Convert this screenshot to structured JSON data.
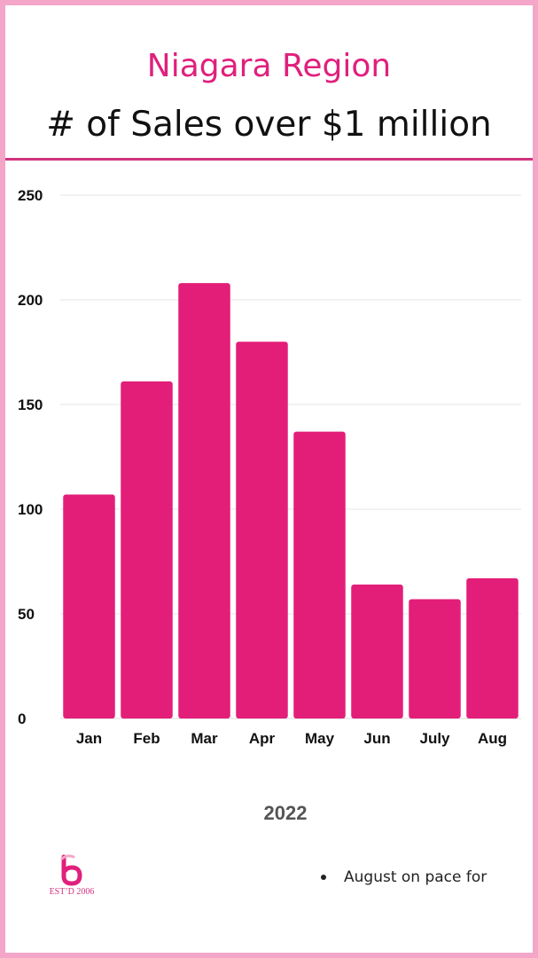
{
  "header": {
    "title_line_1": "Niagara Region",
    "title_line_2": "# of Sales over $1 million"
  },
  "chart_data": {
    "type": "bar",
    "title": "Niagara Region # of Sales over $1 million",
    "xlabel": "2022",
    "ylabel": "",
    "categories": [
      "Jan",
      "Feb",
      "Mar",
      "Apr",
      "May",
      "Jun",
      "July",
      "Aug"
    ],
    "values": [
      107,
      161,
      208,
      180,
      137,
      64,
      57,
      67
    ],
    "ylim": [
      0,
      250
    ],
    "yticks": [
      0,
      50,
      100,
      150,
      200,
      250
    ],
    "grid": true,
    "legend": "none",
    "bar_color": "#e31e79"
  },
  "footer": {
    "logo_text": "EST’D 2006",
    "note": "August on pace for"
  },
  "colors": {
    "accent": "#e0207c",
    "border": "#f4a6c9",
    "bar": "#e31e79"
  }
}
